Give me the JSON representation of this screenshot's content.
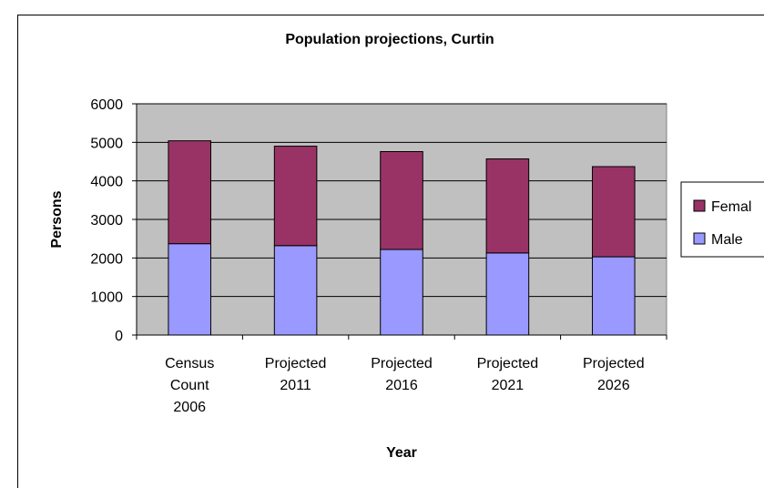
{
  "chart_data": {
    "type": "bar",
    "stacked": true,
    "title": "Population projections, Curtin",
    "xlabel": "Year",
    "ylabel": "Persons",
    "categories": [
      [
        "Census",
        "Count",
        "2006"
      ],
      [
        "Projected",
        "2011"
      ],
      [
        "Projected",
        "2016"
      ],
      [
        "Projected",
        "2021"
      ],
      [
        "Projected",
        "2026"
      ]
    ],
    "series": [
      {
        "name": "Male",
        "color": "#9999ff",
        "values": [
          2370,
          2320,
          2220,
          2130,
          2030
        ]
      },
      {
        "name": "Femal",
        "color": "#993366",
        "values": [
          2670,
          2580,
          2540,
          2440,
          2340
        ]
      }
    ],
    "ylim": [
      0,
      6000
    ],
    "yticks": [
      0,
      1000,
      2000,
      3000,
      4000,
      5000,
      6000
    ],
    "grid": true,
    "plot_background": "#c0c0c0",
    "legend_position": "right",
    "legend_order": [
      "Femal",
      "Male"
    ]
  }
}
